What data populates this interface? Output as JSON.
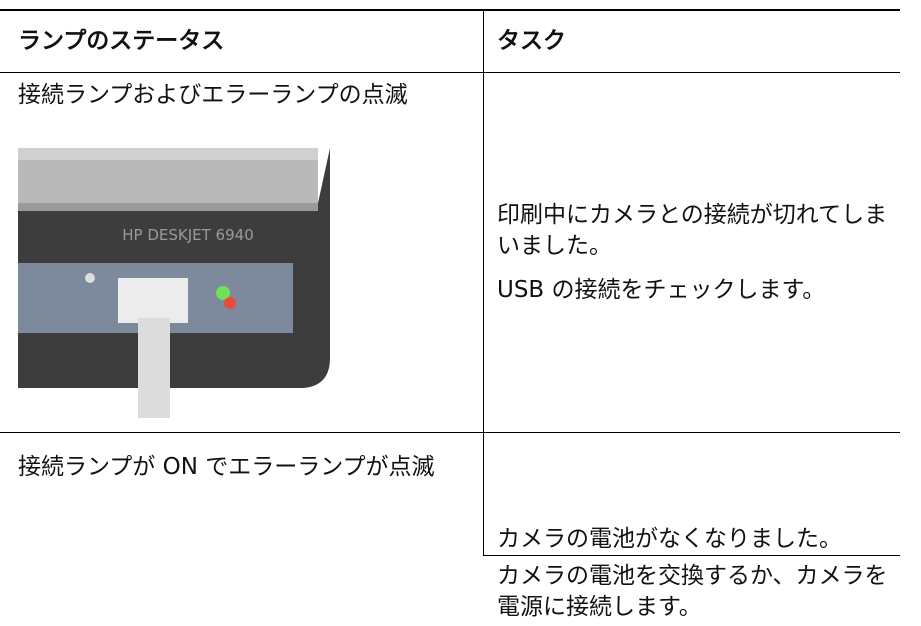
{
  "table": {
    "header": [
      "ランプのステータス",
      "タスク"
    ],
    "rows": [
      {
        "status": "接続ランプおよびエラーランプの点滅",
        "image_label": "HP DESKJET 6940",
        "task": [
          "印刷中にカメラとの接続が切れてしまいました。",
          "USB の接続をチェックします。"
        ]
      },
      {
        "status": "接続ランプが ON でエラーランプが点滅",
        "task": [
          "カメラの電池がなくなりました。"
        ]
      },
      {
        "task": [
          "カメラの電池を交換するか、カメラを電源に接続します。"
        ]
      }
    ]
  }
}
